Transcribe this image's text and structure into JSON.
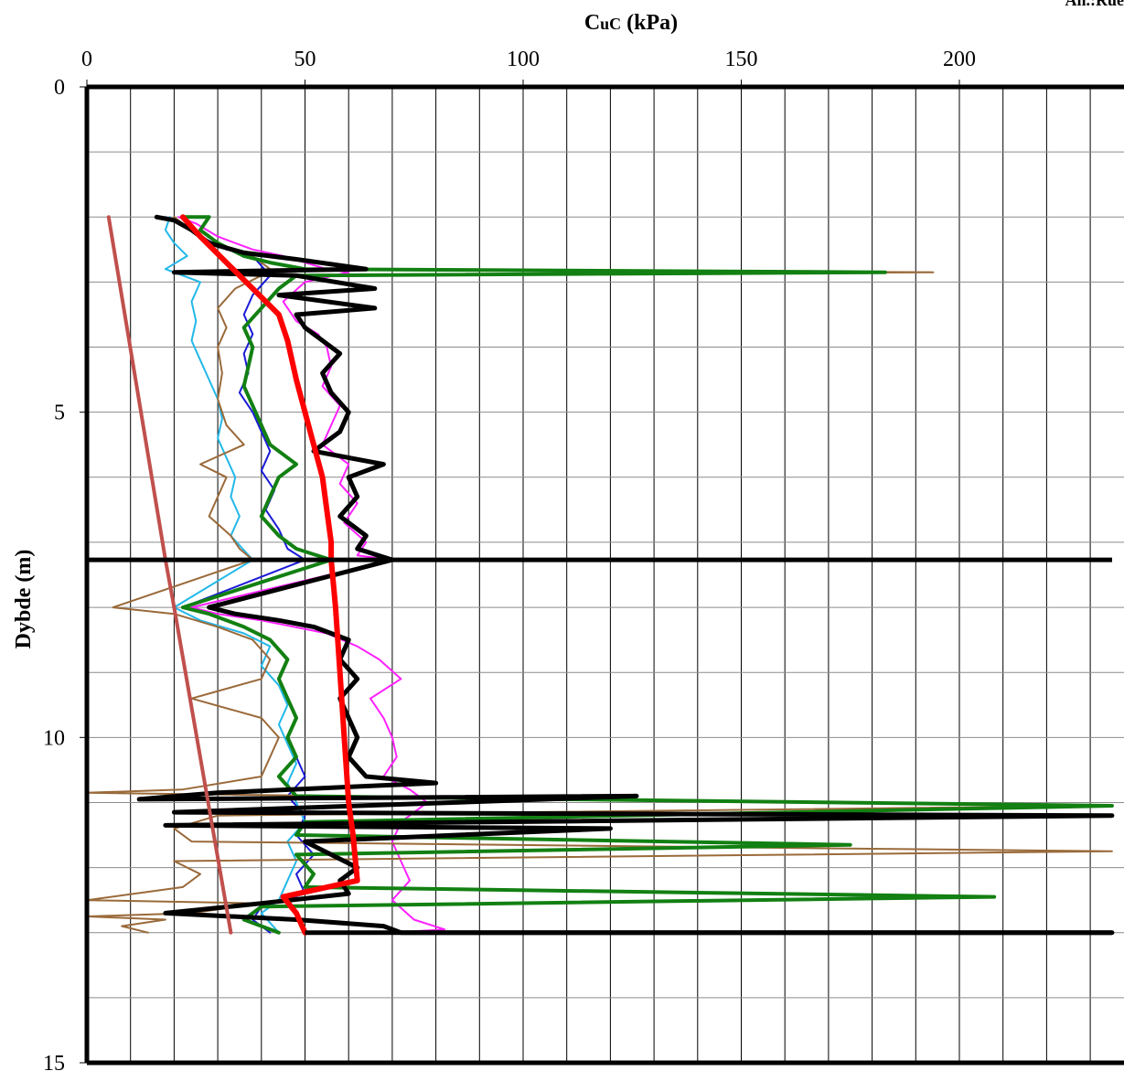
{
  "corner_label": "An.:Rue",
  "chart_data": {
    "type": "line",
    "title": "",
    "xlabel": "CuC (kPa)",
    "xlabel_main": "C",
    "xlabel_sub": "uC",
    "xlabel_unit": " (kPa)",
    "ylabel": "Dybde (m)",
    "xlim": [
      0,
      235
    ],
    "ylim": [
      0,
      15
    ],
    "y_inverted": true,
    "x_ticks": [
      0,
      50,
      100,
      150,
      200
    ],
    "y_ticks": [
      0,
      5,
      10,
      15
    ],
    "x_minor_step": 10,
    "y_minor_step": 1,
    "grid": true,
    "legend": "none",
    "colors": {
      "black": "#000000",
      "green": "#128012",
      "blue": "#1a1ad6",
      "magenta": "#ff20ff",
      "cyan": "#22b8e8",
      "brown": "#9a6a3a",
      "red": "#ff0000",
      "rose": "#c0504d"
    },
    "horizontal_boundaries": [
      {
        "y": 7.27,
        "x_from": 0,
        "x_to": 235
      },
      {
        "y": 13.0,
        "x_from": 50,
        "x_to": 235
      }
    ],
    "series": [
      {
        "color_key": "magenta",
        "width": 2,
        "points": [
          [
            21,
            2.0
          ],
          [
            25,
            2.1
          ],
          [
            30,
            2.3
          ],
          [
            38,
            2.5
          ],
          [
            45,
            2.6
          ],
          [
            55,
            2.8
          ],
          [
            60,
            2.85
          ],
          [
            50,
            3.0
          ],
          [
            45,
            3.3
          ],
          [
            48,
            3.6
          ],
          [
            53,
            3.8
          ],
          [
            55,
            4.0
          ],
          [
            56,
            4.3
          ],
          [
            54,
            4.6
          ],
          [
            58,
            4.9
          ],
          [
            56,
            5.2
          ],
          [
            54,
            5.5
          ],
          [
            60,
            5.8
          ],
          [
            58,
            6.1
          ],
          [
            62,
            6.4
          ],
          [
            59,
            6.7
          ],
          [
            64,
            7.0
          ],
          [
            62,
            7.2
          ],
          [
            70,
            7.27
          ],
          [
            24,
            8.0
          ],
          [
            30,
            8.1
          ],
          [
            40,
            8.2
          ],
          [
            55,
            8.4
          ],
          [
            62,
            8.6
          ],
          [
            67,
            8.8
          ],
          [
            72,
            9.1
          ],
          [
            65,
            9.4
          ],
          [
            68,
            9.7
          ],
          [
            70,
            10.0
          ],
          [
            71,
            10.3
          ],
          [
            68,
            10.6
          ],
          [
            74,
            10.8
          ],
          [
            78,
            11.0
          ],
          [
            72,
            11.3
          ],
          [
            70,
            11.6
          ],
          [
            72,
            11.9
          ],
          [
            74,
            12.2
          ],
          [
            70,
            12.5
          ],
          [
            75,
            12.8
          ],
          [
            82,
            12.95
          ],
          [
            70,
            13.0
          ]
        ]
      },
      {
        "color_key": "blue",
        "width": 2,
        "points": [
          [
            18,
            2.0
          ],
          [
            22,
            2.1
          ],
          [
            26,
            2.3
          ],
          [
            32,
            2.5
          ],
          [
            38,
            2.6
          ],
          [
            42,
            2.9
          ],
          [
            38,
            3.2
          ],
          [
            36,
            3.5
          ],
          [
            38,
            3.8
          ],
          [
            36,
            4.1
          ],
          [
            37,
            4.4
          ],
          [
            35,
            4.7
          ],
          [
            38,
            5.0
          ],
          [
            40,
            5.3
          ],
          [
            42,
            5.6
          ],
          [
            40,
            5.9
          ],
          [
            43,
            6.2
          ],
          [
            41,
            6.5
          ],
          [
            44,
            6.8
          ],
          [
            46,
            7.1
          ],
          [
            50,
            7.27
          ],
          [
            22,
            8.0
          ],
          [
            28,
            8.1
          ],
          [
            36,
            8.3
          ],
          [
            42,
            8.5
          ],
          [
            46,
            8.8
          ],
          [
            44,
            9.1
          ],
          [
            46,
            9.4
          ],
          [
            48,
            9.7
          ],
          [
            46,
            10.0
          ],
          [
            48,
            10.3
          ],
          [
            50,
            10.6
          ],
          [
            46,
            10.9
          ],
          [
            50,
            11.2
          ],
          [
            48,
            11.5
          ],
          [
            52,
            11.8
          ],
          [
            48,
            12.1
          ],
          [
            50,
            12.4
          ],
          [
            40,
            12.6
          ],
          [
            38,
            12.8
          ],
          [
            42,
            13.0
          ]
        ]
      },
      {
        "color_key": "cyan",
        "width": 2,
        "points": [
          [
            19,
            2.0
          ],
          [
            18,
            2.2
          ],
          [
            20,
            2.4
          ],
          [
            23,
            2.6
          ],
          [
            18,
            2.8
          ],
          [
            26,
            3.0
          ],
          [
            24,
            3.3
          ],
          [
            25,
            3.6
          ],
          [
            24,
            3.9
          ],
          [
            26,
            4.2
          ],
          [
            28,
            4.5
          ],
          [
            30,
            4.8
          ],
          [
            31,
            5.1
          ],
          [
            30,
            5.4
          ],
          [
            32,
            5.7
          ],
          [
            34,
            6.0
          ],
          [
            33,
            6.3
          ],
          [
            35,
            6.6
          ],
          [
            33,
            6.9
          ],
          [
            38,
            7.27
          ],
          [
            20,
            8.0
          ],
          [
            26,
            8.2
          ],
          [
            36,
            8.4
          ],
          [
            42,
            8.6
          ],
          [
            40,
            8.9
          ],
          [
            44,
            9.2
          ],
          [
            46,
            9.5
          ],
          [
            44,
            9.8
          ],
          [
            46,
            10.1
          ],
          [
            48,
            10.4
          ],
          [
            46,
            10.7
          ],
          [
            48,
            11.0
          ],
          [
            50,
            11.3
          ],
          [
            46,
            11.6
          ],
          [
            48,
            11.9
          ],
          [
            46,
            12.2
          ],
          [
            44,
            12.5
          ],
          [
            40,
            12.7
          ],
          [
            44,
            13.0
          ]
        ]
      },
      {
        "color_key": "brown",
        "width": 2,
        "points": [
          [
            20,
            2.0
          ],
          [
            24,
            2.2
          ],
          [
            28,
            2.4
          ],
          [
            34,
            2.5
          ],
          [
            38,
            2.6
          ],
          [
            42,
            2.8
          ],
          [
            194,
            2.85
          ],
          [
            40,
            2.9
          ],
          [
            34,
            3.1
          ],
          [
            30,
            3.4
          ],
          [
            32,
            3.7
          ],
          [
            30,
            4.0
          ],
          [
            31,
            4.4
          ],
          [
            30,
            4.8
          ],
          [
            32,
            5.2
          ],
          [
            36,
            5.5
          ],
          [
            26,
            5.8
          ],
          [
            32,
            6.0
          ],
          [
            30,
            6.3
          ],
          [
            28,
            6.6
          ],
          [
            33,
            6.9
          ],
          [
            35,
            7.1
          ],
          [
            38,
            7.27
          ],
          [
            6,
            8.0
          ],
          [
            20,
            8.1
          ],
          [
            30,
            8.3
          ],
          [
            38,
            8.5
          ],
          [
            42,
            8.8
          ],
          [
            40,
            9.1
          ],
          [
            24,
            9.4
          ],
          [
            40,
            9.7
          ],
          [
            44,
            10.0
          ],
          [
            42,
            10.3
          ],
          [
            40,
            10.6
          ],
          [
            22,
            10.8
          ],
          [
            0,
            10.85
          ],
          [
            235,
            11.05
          ],
          [
            30,
            11.2
          ],
          [
            20,
            11.4
          ],
          [
            24,
            11.6
          ],
          [
            235,
            11.75
          ],
          [
            20,
            11.9
          ],
          [
            26,
            12.1
          ],
          [
            22,
            12.3
          ],
          [
            0,
            12.5
          ],
          [
            40,
            12.55
          ],
          [
            24,
            12.7
          ],
          [
            0,
            12.75
          ],
          [
            18,
            12.8
          ],
          [
            8,
            12.9
          ],
          [
            14,
            13.0
          ]
        ]
      },
      {
        "color_key": "green",
        "width": 4,
        "points": [
          [
            22,
            2.0
          ],
          [
            28,
            2.0
          ],
          [
            26,
            2.2
          ],
          [
            30,
            2.4
          ],
          [
            36,
            2.6
          ],
          [
            42,
            2.7
          ],
          [
            50,
            2.8
          ],
          [
            183,
            2.85
          ],
          [
            48,
            2.9
          ],
          [
            44,
            3.1
          ],
          [
            40,
            3.4
          ],
          [
            36,
            3.7
          ],
          [
            38,
            4.0
          ],
          [
            37,
            4.3
          ],
          [
            36,
            4.6
          ],
          [
            38,
            4.9
          ],
          [
            40,
            5.2
          ],
          [
            42,
            5.5
          ],
          [
            48,
            5.8
          ],
          [
            44,
            6.0
          ],
          [
            42,
            6.3
          ],
          [
            40,
            6.6
          ],
          [
            44,
            6.9
          ],
          [
            48,
            7.1
          ],
          [
            56,
            7.27
          ],
          [
            22,
            8.0
          ],
          [
            28,
            8.1
          ],
          [
            36,
            8.3
          ],
          [
            42,
            8.5
          ],
          [
            46,
            8.8
          ],
          [
            44,
            9.1
          ],
          [
            46,
            9.4
          ],
          [
            48,
            9.7
          ],
          [
            46,
            10.0
          ],
          [
            48,
            10.3
          ],
          [
            44,
            10.6
          ],
          [
            48,
            10.9
          ],
          [
            235,
            11.05
          ],
          [
            50,
            11.3
          ],
          [
            48,
            11.5
          ],
          [
            175,
            11.65
          ],
          [
            48,
            11.8
          ],
          [
            52,
            12.1
          ],
          [
            50,
            12.3
          ],
          [
            208,
            12.45
          ],
          [
            40,
            12.6
          ],
          [
            36,
            12.8
          ],
          [
            44,
            13.0
          ]
        ]
      },
      {
        "color_key": "black",
        "width": 5,
        "points": [
          [
            16,
            2.0
          ],
          [
            20,
            2.05
          ],
          [
            24,
            2.2
          ],
          [
            28,
            2.4
          ],
          [
            36,
            2.55
          ],
          [
            48,
            2.65
          ],
          [
            64,
            2.8
          ],
          [
            20,
            2.85
          ],
          [
            48,
            2.9
          ],
          [
            66,
            3.1
          ],
          [
            44,
            3.2
          ],
          [
            66,
            3.4
          ],
          [
            48,
            3.5
          ],
          [
            50,
            3.7
          ],
          [
            54,
            3.9
          ],
          [
            58,
            4.1
          ],
          [
            54,
            4.4
          ],
          [
            56,
            4.7
          ],
          [
            60,
            5.0
          ],
          [
            58,
            5.3
          ],
          [
            52,
            5.6
          ],
          [
            68,
            5.8
          ],
          [
            60,
            6.0
          ],
          [
            62,
            6.3
          ],
          [
            58,
            6.6
          ],
          [
            64,
            6.9
          ],
          [
            62,
            7.1
          ],
          [
            70,
            7.27
          ],
          [
            28,
            8.0
          ],
          [
            34,
            8.1
          ],
          [
            44,
            8.2
          ],
          [
            52,
            8.3
          ],
          [
            60,
            8.5
          ],
          [
            58,
            8.8
          ],
          [
            62,
            9.1
          ],
          [
            58,
            9.4
          ],
          [
            60,
            9.7
          ],
          [
            62,
            10.0
          ],
          [
            60,
            10.3
          ],
          [
            64,
            10.6
          ],
          [
            80,
            10.7
          ],
          [
            30,
            10.85
          ],
          [
            12,
            10.95
          ],
          [
            126,
            10.9
          ],
          [
            20,
            11.15
          ],
          [
            235,
            11.2
          ],
          [
            18,
            11.35
          ],
          [
            120,
            11.4
          ],
          [
            50,
            11.6
          ],
          [
            56,
            11.8
          ],
          [
            62,
            12.0
          ],
          [
            58,
            12.2
          ],
          [
            60,
            12.4
          ],
          [
            40,
            12.55
          ],
          [
            18,
            12.7
          ],
          [
            48,
            12.8
          ],
          [
            68,
            12.9
          ],
          [
            72,
            13.0
          ],
          [
            235,
            13.0
          ]
        ]
      },
      {
        "color_key": "red",
        "width": 6,
        "points": [
          [
            22,
            2.0
          ],
          [
            26,
            2.3
          ],
          [
            32,
            2.7
          ],
          [
            38,
            3.1
          ],
          [
            44,
            3.5
          ],
          [
            46,
            3.9
          ],
          [
            48,
            4.5
          ],
          [
            50,
            5.0
          ],
          [
            52,
            5.5
          ],
          [
            54,
            6.0
          ],
          [
            55,
            6.5
          ],
          [
            56,
            7.0
          ],
          [
            56,
            7.27
          ],
          [
            57,
            8.0
          ],
          [
            58,
            9.0
          ],
          [
            59,
            10.0
          ],
          [
            60,
            11.0
          ],
          [
            61,
            11.5
          ],
          [
            62,
            12.2
          ],
          [
            45,
            12.45
          ],
          [
            48,
            12.7
          ],
          [
            50,
            13.0
          ]
        ]
      },
      {
        "color_key": "rose",
        "width": 4,
        "points": [
          [
            5,
            2.0
          ],
          [
            18,
            7.27
          ],
          [
            20,
            8.0
          ],
          [
            33,
            13.0
          ]
        ]
      }
    ]
  }
}
